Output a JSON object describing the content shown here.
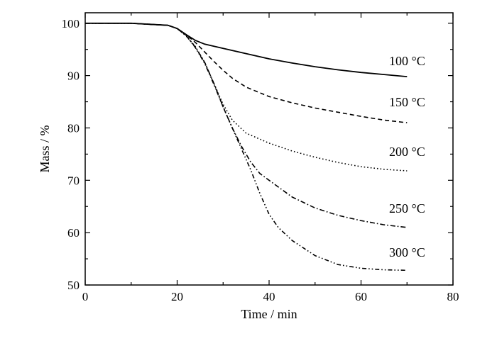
{
  "chart_data": {
    "type": "line",
    "title": "",
    "xlabel": "Time / min",
    "ylabel": "Mass / %",
    "xlim": [
      0,
      80
    ],
    "ylim": [
      50,
      102
    ],
    "xticks": [
      0,
      20,
      40,
      60,
      80
    ],
    "yticks": [
      50,
      60,
      70,
      80,
      90,
      100
    ],
    "grid": false,
    "legend": "none",
    "series": [
      {
        "name": "100 °C",
        "dash": "solid",
        "x": [
          0,
          10,
          18,
          20,
          22,
          24,
          26,
          30,
          35,
          40,
          45,
          50,
          55,
          60,
          65,
          70
        ],
        "y": [
          100,
          100,
          99.6,
          99,
          97.8,
          96.7,
          96,
          95.2,
          94.2,
          93.2,
          92.4,
          91.7,
          91.1,
          90.6,
          90.2,
          89.8
        ]
      },
      {
        "name": "150 °C",
        "dash": "dashed",
        "x": [
          0,
          10,
          18,
          20,
          22,
          24,
          26,
          28,
          30,
          32,
          35,
          40,
          45,
          50,
          55,
          60,
          65,
          70
        ],
        "y": [
          100,
          100,
          99.6,
          99,
          97.8,
          96.3,
          94.5,
          92.7,
          91,
          89.5,
          87.8,
          86,
          84.8,
          83.8,
          83,
          82.2,
          81.5,
          81
        ]
      },
      {
        "name": "200 °C",
        "dash": "dotted",
        "x": [
          0,
          10,
          18,
          20,
          22,
          24,
          26,
          28,
          30,
          32,
          35,
          40,
          45,
          50,
          55,
          60,
          65,
          70
        ],
        "y": [
          100,
          100,
          99.6,
          99,
          97.5,
          95.5,
          92.5,
          88.5,
          84.5,
          81.5,
          79,
          77.1,
          75.6,
          74.4,
          73.4,
          72.6,
          72.1,
          71.8
        ]
      },
      {
        "name": "250 °C",
        "dash": "dashdot",
        "x": [
          0,
          10,
          18,
          20,
          22,
          24,
          26,
          28,
          30,
          32,
          34,
          36,
          38,
          40,
          45,
          50,
          55,
          60,
          65,
          70
        ],
        "y": [
          100,
          100,
          99.6,
          99,
          97.6,
          95.4,
          92.5,
          88.5,
          84,
          80,
          76.5,
          73.5,
          71.3,
          70,
          66.8,
          64.7,
          63.3,
          62.3,
          61.5,
          61
        ]
      },
      {
        "name": "300 °C",
        "dash": "dashdotdot",
        "x": [
          0,
          10,
          18,
          20,
          22,
          24,
          26,
          28,
          30,
          32,
          34,
          36,
          38,
          40,
          42,
          45,
          50,
          55,
          60,
          65,
          70
        ],
        "y": [
          100,
          100,
          99.6,
          99,
          97.6,
          95.3,
          92.3,
          88.3,
          84,
          80,
          76,
          72,
          67.5,
          63.5,
          61,
          58.5,
          55.6,
          53.9,
          53.2,
          52.9,
          52.8
        ]
      }
    ]
  }
}
